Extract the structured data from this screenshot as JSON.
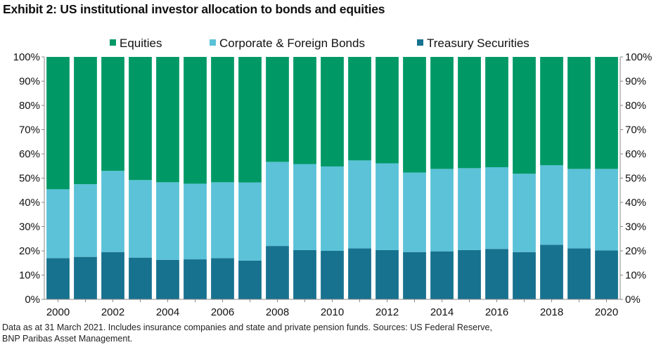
{
  "title": "Exhibit 2: US institutional investor allocation to bonds and equities",
  "footnote_line1": "Data as at 31 March 2021. Includes insurance companies and state and private pension funds. Sources: US Federal Reserve,",
  "footnote_line2": "BNP Paribas Asset Management.",
  "colors": {
    "equities": "#009966",
    "corporate_foreign_bonds": "#5BC2D8",
    "treasury": "#17728F",
    "separator": "#ffffff",
    "axis": "#888888"
  },
  "chart_data": {
    "type": "bar",
    "stacked": true,
    "categories": [
      "2000",
      "2001",
      "2002",
      "2003",
      "2004",
      "2005",
      "2006",
      "2007",
      "2008",
      "2009",
      "2010",
      "2011",
      "2012",
      "2013",
      "2014",
      "2015",
      "2016",
      "2017",
      "2018",
      "2019",
      "2020"
    ],
    "x_tick_labels": [
      "2000",
      "2002",
      "2004",
      "2006",
      "2008",
      "2010",
      "2012",
      "2014",
      "2016",
      "2018",
      "2020"
    ],
    "series": [
      {
        "name": "Treasury Securities",
        "values": [
          17,
          17.5,
          19.5,
          17.2,
          16.3,
          16.5,
          17,
          16,
          22,
          20.3,
          20,
          21,
          20.3,
          19.5,
          19.8,
          20.3,
          20.8,
          19.5,
          22.5,
          21,
          20.2
        ]
      },
      {
        "name": "Corporate & Foreign Bonds",
        "values": [
          28.4,
          30,
          33.5,
          32,
          32,
          31.2,
          31.3,
          32.2,
          34.7,
          35.5,
          34.8,
          36.3,
          35.8,
          32.8,
          34,
          33.8,
          33.7,
          32.3,
          32.8,
          32.8,
          33.6
        ]
      },
      {
        "name": "Equities",
        "values": [
          54.6,
          52.5,
          47,
          50.8,
          51.7,
          52.3,
          51.7,
          51.8,
          43.3,
          44.2,
          45.2,
          42.7,
          43.9,
          47.7,
          46.2,
          45.9,
          45.5,
          48.2,
          44.7,
          46.2,
          46.2
        ]
      }
    ],
    "legend_order": [
      "Equities",
      "Corporate & Foreign Bonds",
      "Treasury Securities"
    ],
    "legend_position": "top",
    "y_ticks": [
      "0%",
      "10%",
      "20%",
      "30%",
      "40%",
      "50%",
      "60%",
      "70%",
      "80%",
      "90%",
      "100%"
    ],
    "ylim": [
      0,
      100
    ],
    "y_axis_both_sides": true,
    "grid": false
  }
}
